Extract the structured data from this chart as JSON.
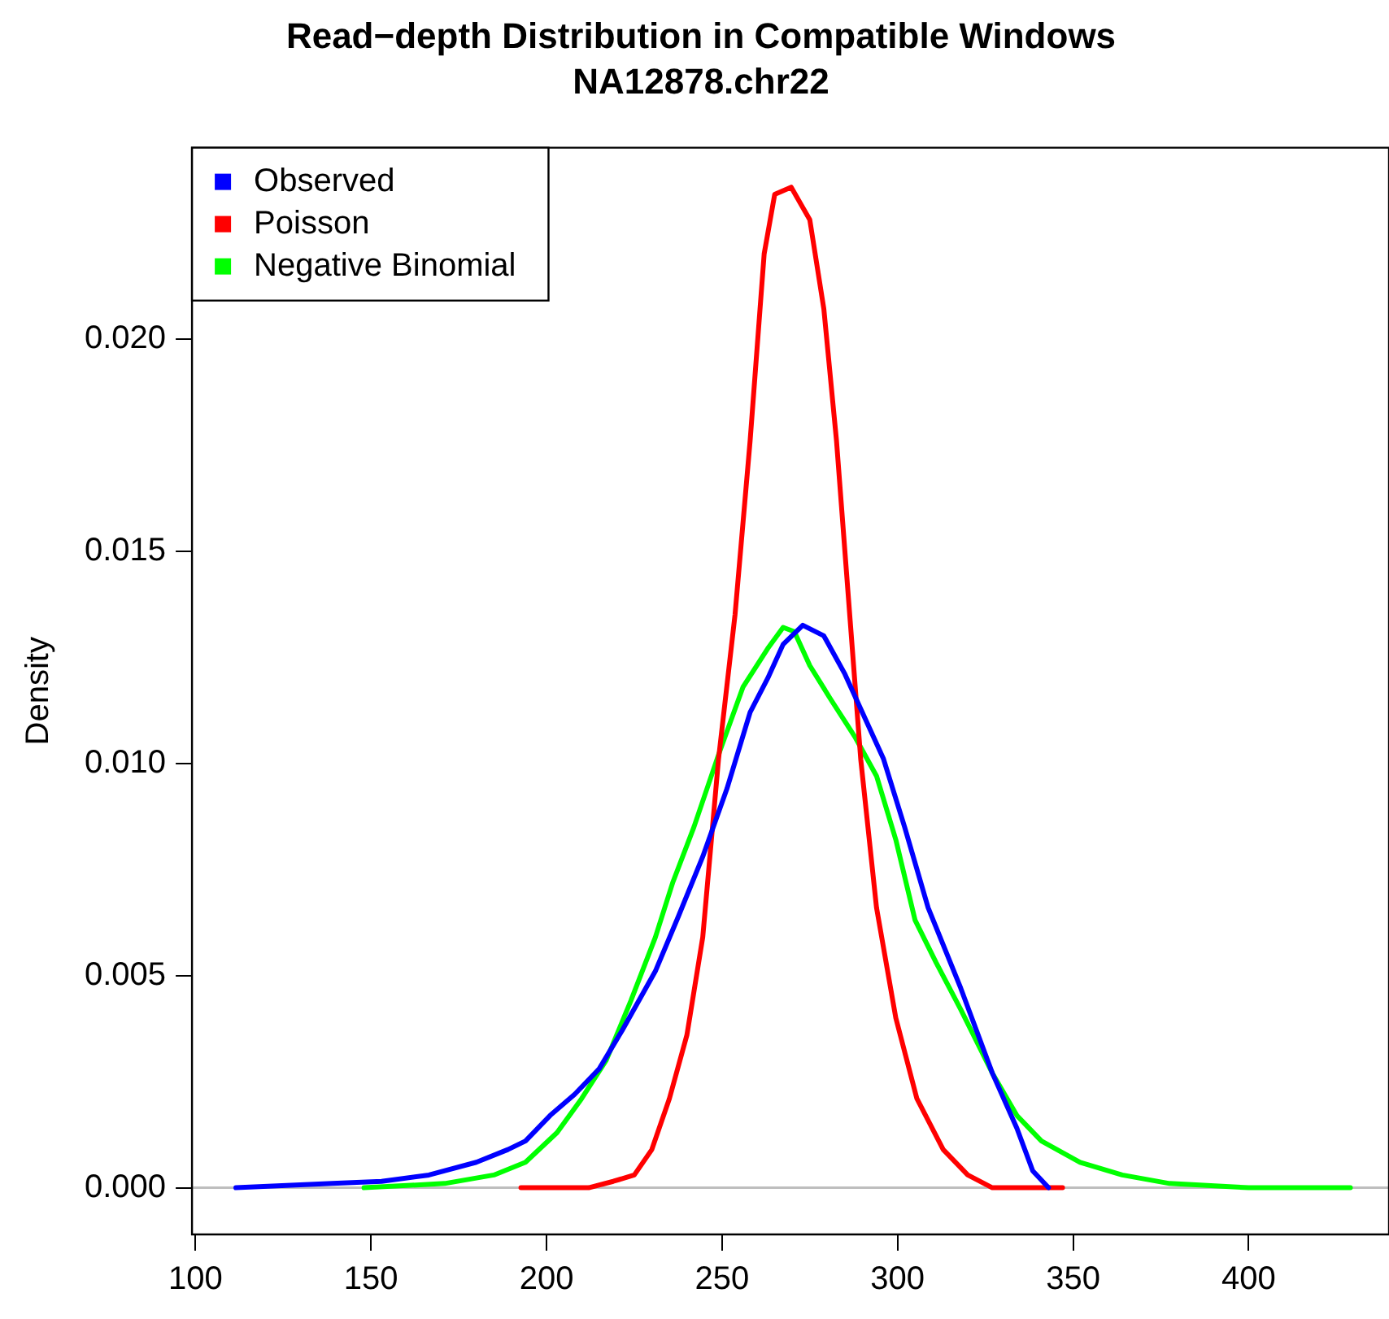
{
  "chart_data": {
    "type": "line",
    "title": "Read−depth Distribution in Compatible Windows",
    "subtitle": "NA12878.chr22",
    "ylabel": "Density",
    "xlim": [
      99,
      440
    ],
    "ylim": [
      -0.0011,
      0.0245
    ],
    "xticks": [
      100,
      150,
      200,
      250,
      300,
      350,
      400
    ],
    "yticks": [
      {
        "value": 0,
        "label": "0.000"
      },
      0.005,
      {
        "value": 0.01,
        "label": "0.010"
      },
      0.015,
      {
        "value": 0.02,
        "label": "0.020"
      }
    ],
    "grid": false,
    "legend": "top left",
    "marker": "none",
    "line_style": "solid",
    "ref_lines": [
      {
        "axis": "y",
        "value": 0,
        "color": "#bebebe"
      }
    ],
    "series": [
      {
        "name": "Observed",
        "color": "#0000ff",
        "x": [
          111.5,
          139,
          153,
          166.5,
          180,
          189,
          194,
          201,
          208,
          215,
          221.5,
          231,
          237.6,
          244.5,
          251.4,
          258,
          263,
          267.4,
          273,
          279,
          285,
          289.4,
          296,
          302,
          308.7,
          318,
          327,
          334,
          338.5,
          343
        ],
        "values": [
          0,
          0.0001,
          0.00015,
          0.0003,
          0.0006,
          0.0009,
          0.0011,
          0.0017,
          0.0022,
          0.0028,
          0.0037,
          0.0051,
          0.0064,
          0.0078,
          0.0094,
          0.0112,
          0.012,
          0.0128,
          0.01325,
          0.013,
          0.0121,
          0.0113,
          0.0101,
          0.0085,
          0.0066,
          0.0047,
          0.0027,
          0.0014,
          0.0004,
          0
        ]
      },
      {
        "name": "Poisson",
        "color": "#ff0000",
        "x": [
          192.7,
          212,
          219,
          225,
          230,
          235,
          240,
          244.5,
          249,
          253.7,
          258,
          262,
          265,
          269.7,
          275,
          279,
          282.6,
          286,
          289.5,
          294,
          299.5,
          305.5,
          313,
          320,
          327,
          341,
          347
        ],
        "values": [
          0,
          0,
          0.00015,
          0.0003,
          0.0009,
          0.0021,
          0.0036,
          0.0059,
          0.0101,
          0.0135,
          0.0176,
          0.022,
          0.0234,
          0.02357,
          0.0228,
          0.0207,
          0.0176,
          0.0139,
          0.0101,
          0.0066,
          0.004,
          0.0021,
          0.0009,
          0.0003,
          0,
          0,
          0
        ]
      },
      {
        "name": "Negative Binomial",
        "color": "#00ff00",
        "x": [
          148,
          171,
          185,
          194,
          203,
          210,
          217,
          224,
          231,
          236,
          242,
          249,
          256,
          263,
          267.4,
          270.6,
          275,
          281,
          288,
          294,
          299.5,
          305,
          311,
          318,
          327,
          334,
          341,
          352,
          364,
          377.5,
          400,
          429
        ],
        "values": [
          0,
          0.0001,
          0.0003,
          0.0006,
          0.0013,
          0.0021,
          0.003,
          0.0044,
          0.0059,
          0.0072,
          0.0085,
          0.0102,
          0.0118,
          0.0127,
          0.0132,
          0.0131,
          0.0123,
          0.0115,
          0.0106,
          0.0097,
          0.0082,
          0.0063,
          0.0053,
          0.0042,
          0.0027,
          0.0017,
          0.0011,
          0.0006,
          0.0003,
          0.0001,
          0,
          0
        ]
      }
    ]
  }
}
